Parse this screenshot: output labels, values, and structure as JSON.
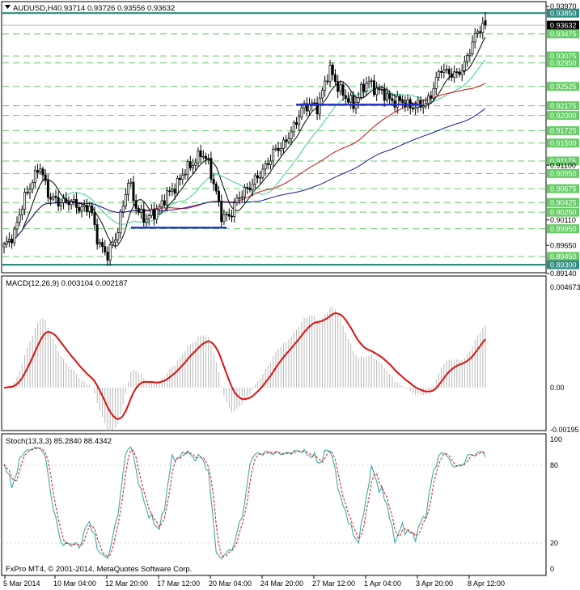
{
  "main": {
    "symbol": "AUDUSD,H4",
    "ohlc": "0.93714 0.93726 0.93556 0.93632",
    "price_labels": [
      {
        "value": 0.9397,
        "text": "0.93970",
        "box": false
      },
      {
        "value": 0.9385,
        "text": "0.93850",
        "box": true,
        "color": "#2e8b80"
      },
      {
        "value": 0.93632,
        "text": "0.93632",
        "box": true,
        "color": "#000000"
      },
      {
        "value": 0.93475,
        "text": "0.93475",
        "box": true,
        "color": "#66cc66"
      },
      {
        "value": 0.93075,
        "text": "0.93075",
        "box": true,
        "color": "#66cc66"
      },
      {
        "value": 0.9295,
        "text": "0.92950",
        "box": true,
        "color": "#66cc66"
      },
      {
        "value": 0.92525,
        "text": "0.92525",
        "box": true,
        "color": "#66cc66"
      },
      {
        "value": 0.92175,
        "text": "0.92175",
        "box": true,
        "color": "#66cc66"
      },
      {
        "value": 0.92,
        "text": "0.92000",
        "box": true,
        "color": "#66cc66"
      },
      {
        "value": 0.91725,
        "text": "0.91725",
        "box": true,
        "color": "#66cc66"
      },
      {
        "value": 0.915,
        "text": "0.91500",
        "box": true,
        "color": "#66cc66"
      },
      {
        "value": 0.91175,
        "text": "0.91175",
        "box": true,
        "color": "#66cc66"
      },
      {
        "value": 0.911,
        "text": "0.91100",
        "box": false
      },
      {
        "value": 0.9095,
        "text": "0.90950",
        "box": true,
        "color": "#66cc66"
      },
      {
        "value": 0.90675,
        "text": "0.90675",
        "box": true,
        "color": "#66cc66"
      },
      {
        "value": 0.90425,
        "text": "0.90425",
        "box": true,
        "color": "#66cc66"
      },
      {
        "value": 0.9025,
        "text": "0.90250",
        "box": true,
        "color": "#66cc66"
      },
      {
        "value": 0.9011,
        "text": "0.90110",
        "box": false
      },
      {
        "value": 0.8995,
        "text": "0.89950",
        "box": true,
        "color": "#66cc66"
      },
      {
        "value": 0.8965,
        "text": "0.89650",
        "box": false
      },
      {
        "value": 0.8945,
        "text": "0.89450",
        "box": true,
        "color": "#66cc66"
      },
      {
        "value": 0.893,
        "text": "0.89300",
        "box": true,
        "color": "#2e8b80"
      },
      {
        "value": 0.8914,
        "text": "0.89140",
        "box": false
      }
    ],
    "resistance_level": 0.9385,
    "support_level": 0.893,
    "dashed_levels": [
      0.93475,
      0.93075,
      0.9295,
      0.92525,
      0.92175,
      0.92,
      0.91725,
      0.915,
      0.91175,
      0.9095,
      0.90675,
      0.90425,
      0.9025,
      0.8995,
      0.8945
    ]
  },
  "macd": {
    "title": "MACD(12,26,9) 0.003104 0.002187",
    "scale_labels": [
      "0.004673",
      "0.00",
      "-0.00195"
    ]
  },
  "stoch": {
    "title": "Stoch(13,3,3) 85.2840 88.4342",
    "scale_labels": [
      "100",
      "80",
      "20",
      "0"
    ]
  },
  "copyright": "FxPro MT4, © 2001-2014, MetaQuotes Software Corp.",
  "time_labels": [
    "5 Mar 2014",
    "10 Mar 04:00",
    "12 Mar 20:00",
    "17 Mar 12:00",
    "20 Mar 04:00",
    "24 Mar 20:00",
    "27 Mar 12:00",
    "1 Apr 04:00",
    "3 Apr 20:00",
    "8 Apr 12:00"
  ],
  "colors": {
    "bull": "#ffffff",
    "bear": "#000000",
    "level": "#2e8b80",
    "dashed": "#66cc66",
    "ma_black": "#000000",
    "ma_teal": "#3ccf9a",
    "ma_red": "#cc1111",
    "ma_blue": "#1a1a99",
    "trendline": "#1f2ecc",
    "macd_signal": "#dd1111",
    "stoch_main": "#2fa3a3",
    "stoch_signal": "#dd1111"
  }
}
